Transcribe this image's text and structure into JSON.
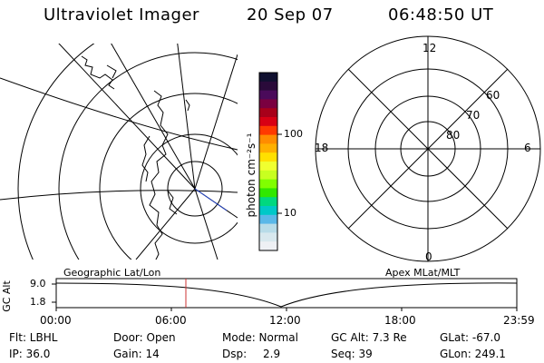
{
  "header": {
    "instrument": "Ultraviolet Imager",
    "date": "20 Sep 07",
    "time": "06:48:50 UT"
  },
  "colorbar": {
    "unit_label": "photon cm⁻²s⁻¹",
    "tick_100": "100",
    "tick_10": "10",
    "colors": [
      "#101030",
      "#2a0a3a",
      "#4a0a5a",
      "#7a0040",
      "#a8001a",
      "#d80014",
      "#ff3a00",
      "#ff8c00",
      "#ffb000",
      "#ffe000",
      "#f0ff30",
      "#c8ff20",
      "#80ff00",
      "#30e800",
      "#00d880",
      "#00c8c8",
      "#5ab8e8",
      "#b8dce8",
      "#d8e8ee",
      "#eef0f4"
    ]
  },
  "polar_plot": {
    "mlt_labels": {
      "top": "12",
      "right": "6",
      "bottom": "0",
      "left": "18"
    },
    "lat_labels": [
      "60",
      "70",
      "80"
    ]
  },
  "alt_plot": {
    "left_title": "Geographic Lat/Lon",
    "right_title": "Apex MLat/MLT",
    "axis_label": "GC Alt",
    "y_ticks": [
      "9.0",
      "1.8"
    ],
    "x_ticks": [
      "00:00",
      "06:00",
      "12:00",
      "18:00",
      "23:59"
    ]
  },
  "footer": {
    "flt": "Flt: LBHL",
    "door": "Door: Open",
    "mode": "Mode: Normal",
    "gc_alt": "GC Alt: 7.3 Re",
    "glat": "GLat: -67.0",
    "ip": "IP: 36.0",
    "gain": "Gain: 14",
    "dsp_label": "Dsp:",
    "dsp_value": "2.9",
    "seq": "Seq: 39",
    "glon": "GLon: 249.1"
  },
  "colors": {
    "marker": "#cc3333",
    "track": "#2244cc"
  }
}
